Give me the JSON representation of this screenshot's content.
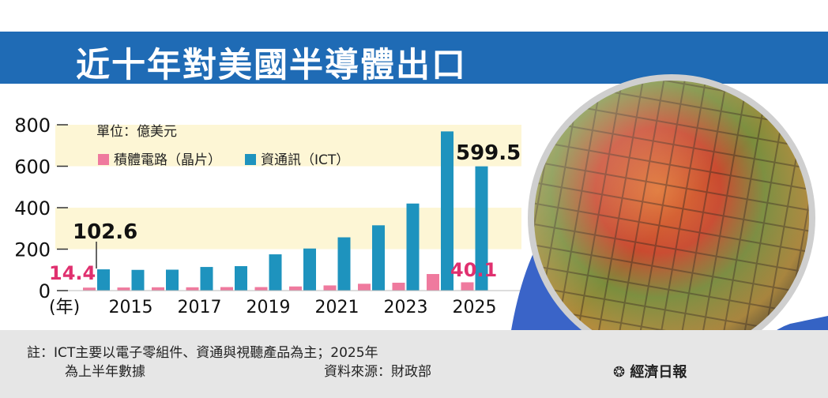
{
  "title": "近十年對美國半導體出口",
  "chart_data": {
    "type": "bar",
    "unit_label": "單位：億美元",
    "categories": [
      "2014",
      "2015",
      "2016",
      "2017",
      "2018",
      "2019",
      "2020",
      "2021",
      "2022",
      "2023",
      "2024",
      "2025"
    ],
    "x_tick_labels": [
      "2015",
      "2017",
      "2019",
      "2021",
      "2023",
      "2025"
    ],
    "x_axis_prefix": "(年)",
    "series": [
      {
        "name": "積體電路（晶片）",
        "color": "#ef7a9e",
        "values": [
          14.4,
          15,
          16,
          16,
          17,
          17,
          20,
          25,
          33,
          38,
          80,
          40.1
        ]
      },
      {
        "name": "資通訊（ICT）",
        "color": "#1e93be",
        "values": [
          102.6,
          100,
          101,
          114,
          118,
          175,
          203,
          257,
          315,
          420,
          768,
          599.5
        ]
      }
    ],
    "ylim": [
      0,
      800
    ],
    "y_ticks": [
      0,
      200,
      400,
      600,
      800
    ],
    "annotations": [
      {
        "text": "102.6",
        "series": 1,
        "index": 0
      },
      {
        "text": "14.4",
        "series": 0,
        "index": 0
      },
      {
        "text": "599.5",
        "series": 1,
        "index": 11
      },
      {
        "text": "40.1",
        "series": 0,
        "index": 11
      }
    ]
  },
  "footer": {
    "note_line1": "註：ICT主要以電子零組件、資通與視聽產品為主；2025年",
    "note_line2": "為上半年數據",
    "source": "資料來源：財政部",
    "logo": "經濟日報"
  },
  "colors": {
    "title_bg": "#1f6bb5",
    "band": "#fdf6d5",
    "footer_bg": "#e6e6e6",
    "glove": "#3a64c8"
  }
}
